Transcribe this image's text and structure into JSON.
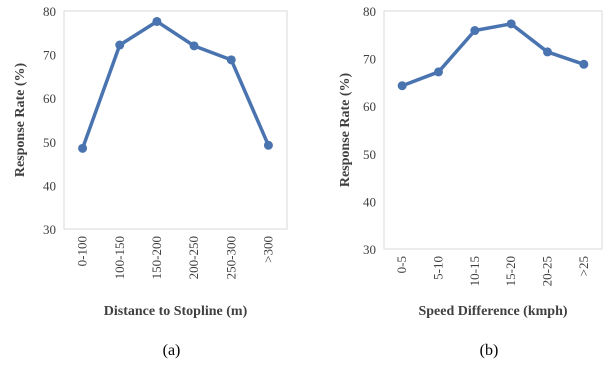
{
  "chart_data": [
    {
      "type": "line",
      "caption": "(a)",
      "categories": [
        "0-100",
        "100-150",
        "150-200",
        "200-250",
        "250-300",
        ">300"
      ],
      "series": [
        {
          "values": [
            48.5,
            72.2,
            77.6,
            72.0,
            68.8,
            49.2
          ]
        }
      ],
      "xlabel": "Distance to Stopline (m)",
      "ylabel": "Response Rate (%)",
      "ylim": [
        30,
        80
      ],
      "yticks": [
        30,
        40,
        50,
        60,
        70,
        80
      ],
      "grid": false,
      "line_color": "#4a74b0"
    },
    {
      "type": "line",
      "caption": "(b)",
      "categories": [
        "0-5",
        "5-10",
        "10-15",
        "15-20",
        "20-25",
        ">25"
      ],
      "series": [
        {
          "values": [
            64.3,
            67.2,
            75.9,
            77.3,
            71.4,
            68.8
          ]
        }
      ],
      "xlabel": "Speed Difference (kmph)",
      "ylabel": "Response Rate (%)",
      "ylim": [
        30,
        80
      ],
      "yticks": [
        30,
        40,
        50,
        60,
        70,
        80
      ],
      "grid": false,
      "line_color": "#4a74b0"
    }
  ]
}
